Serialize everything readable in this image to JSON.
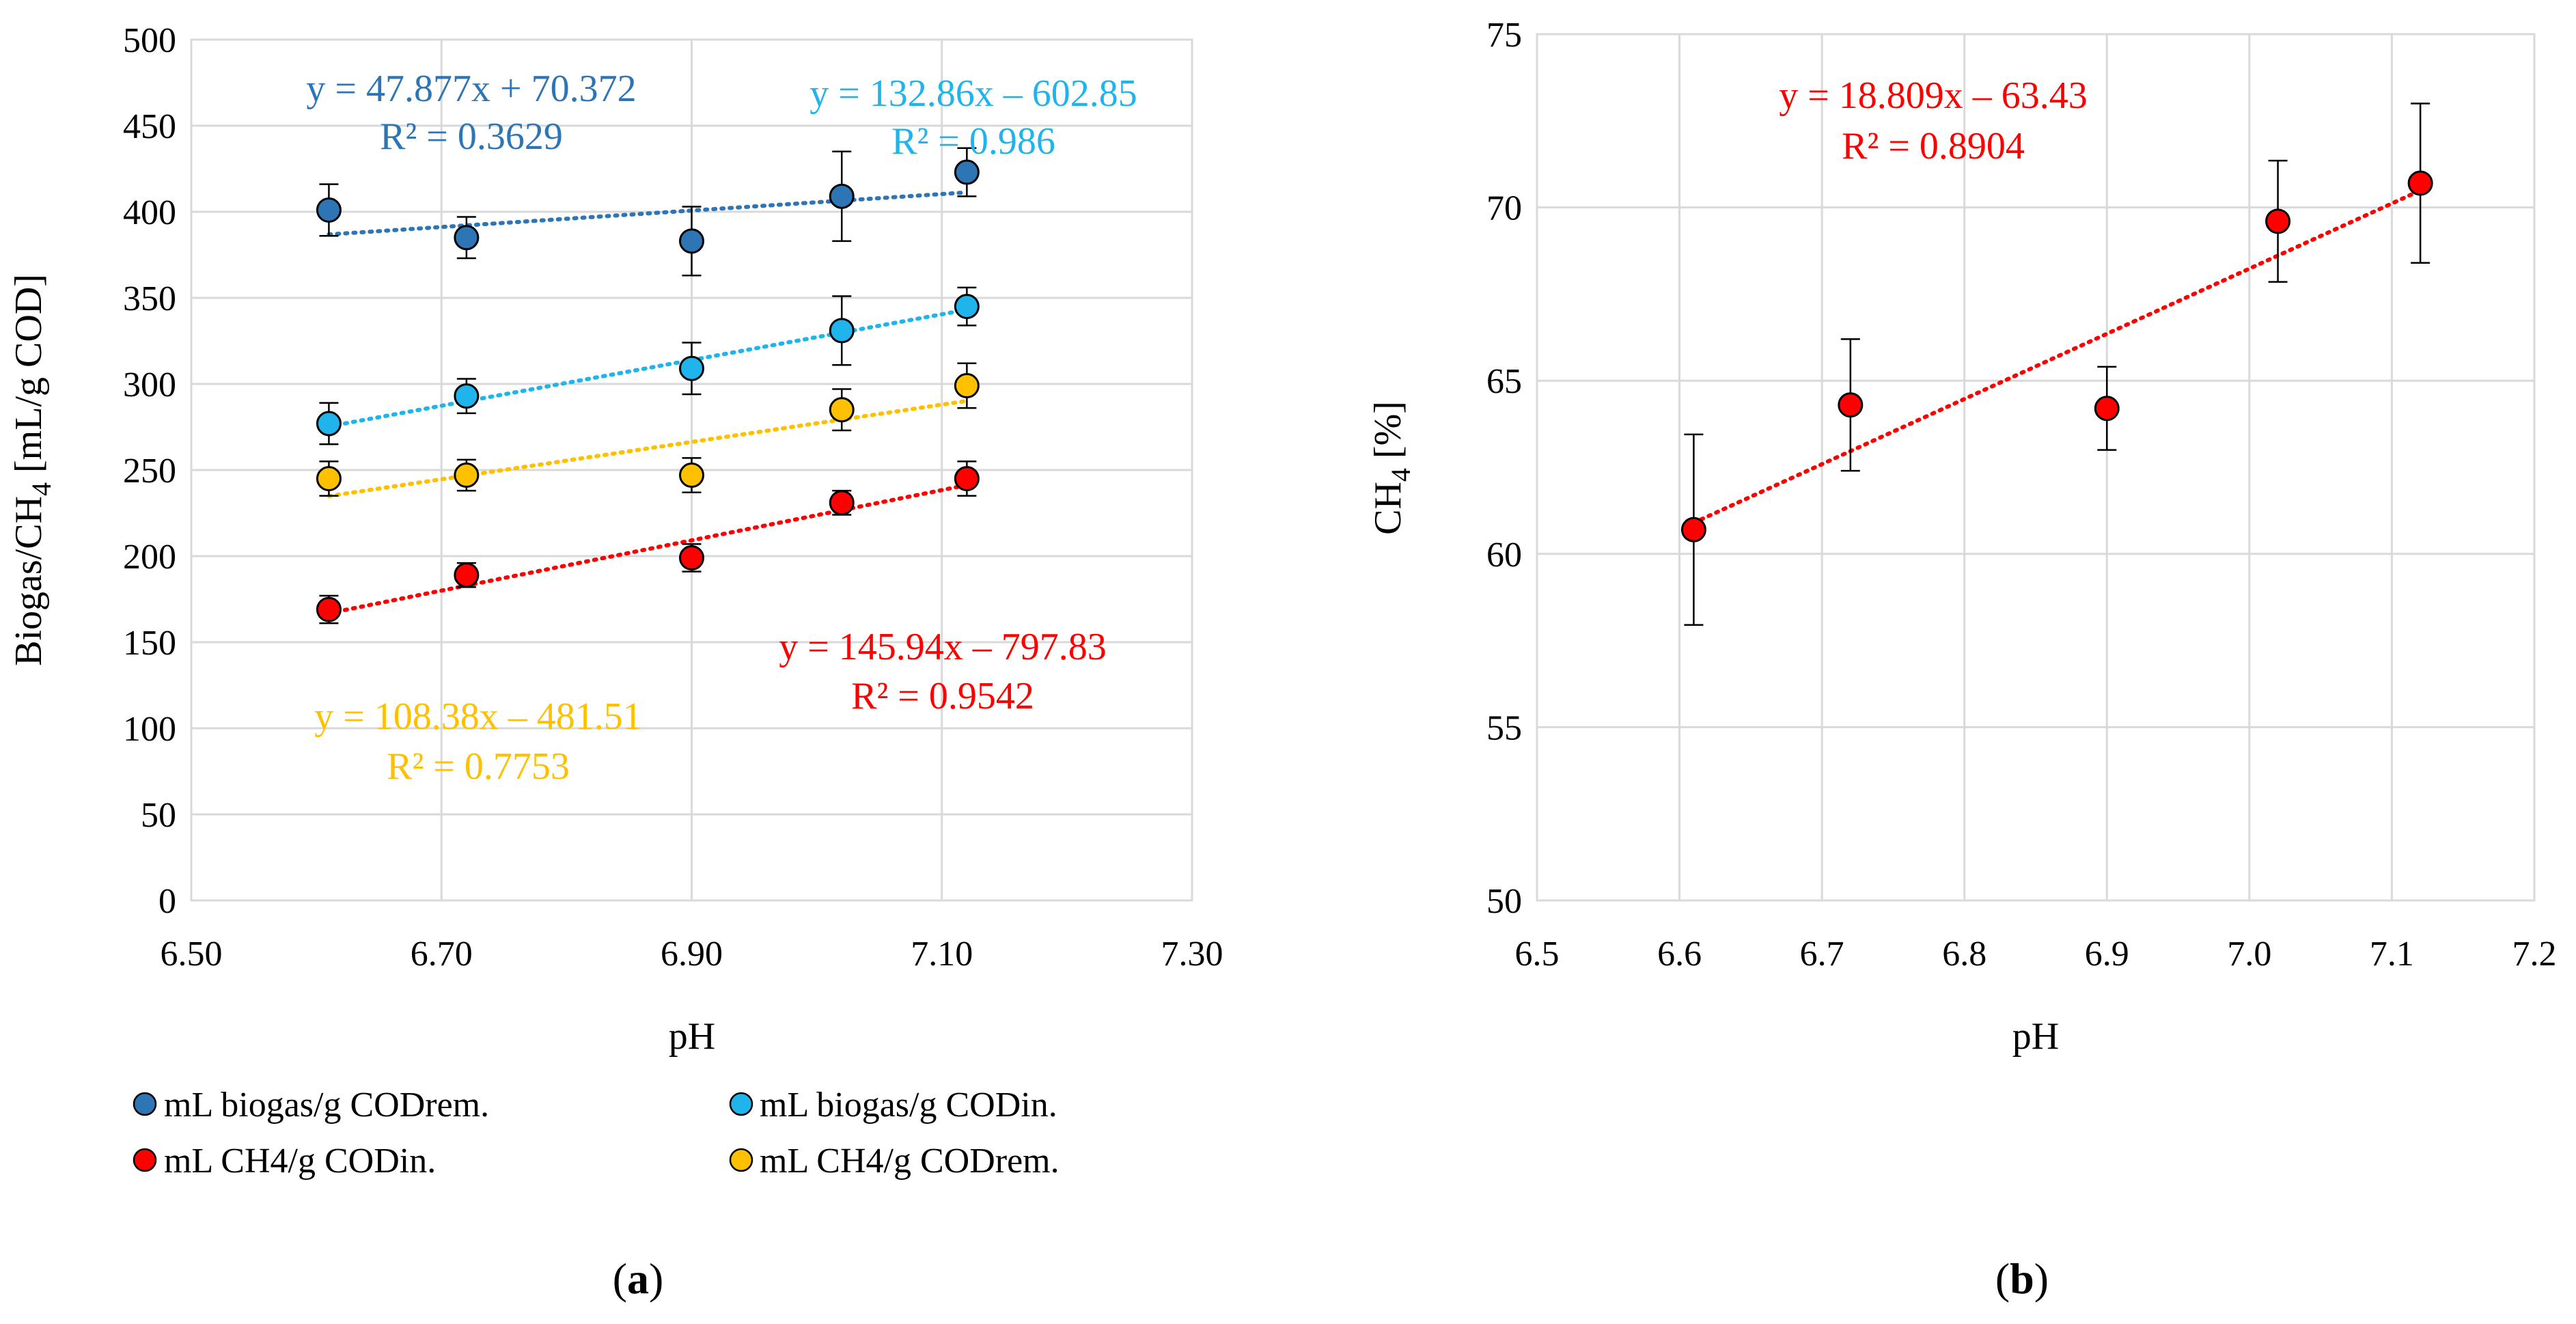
{
  "charts": [
    {
      "id": "a",
      "caption": "a",
      "xlabel": "pH",
      "ylabel": "Biogas/CH4 [mL/g COD]",
      "ylabel_parts": [
        "Biogas/CH",
        "4",
        " [mL/g COD]"
      ],
      "x_ticks": [
        "6.50",
        "6.70",
        "6.90",
        "7.10",
        "7.30"
      ],
      "y_ticks": [
        "0",
        "50",
        "100",
        "150",
        "200",
        "250",
        "300",
        "350",
        "400",
        "450",
        "500"
      ]
    },
    {
      "id": "b",
      "caption": "b",
      "xlabel": "pH",
      "ylabel": "CH4 [%]",
      "ylabel_parts": [
        "CH",
        "4",
        " [%]"
      ],
      "x_ticks": [
        "6.5",
        "6.6",
        "6.7",
        "6.8",
        "6.9",
        "7.0",
        "7.1",
        "7.2"
      ],
      "y_ticks": [
        "50",
        "55",
        "60",
        "65",
        "70",
        "75"
      ]
    }
  ],
  "legend": [
    "mL biogas/g CODrem.",
    "mL biogas/g CODin.",
    "mL CH4/g CODin.",
    "mL CH4/g CODrem."
  ],
  "chart_data": [
    {
      "type": "scatter",
      "title": "",
      "xlabel": "pH",
      "ylabel": "Biogas/CH4 [mL/g COD]",
      "xlim": [
        6.5,
        7.3
      ],
      "ylim": [
        0,
        500
      ],
      "grid": true,
      "legend_position": "bottom",
      "series": [
        {
          "name": "mL biogas/g CODrem.",
          "color": "#2e75b6",
          "x": [
            6.61,
            6.72,
            6.9,
            7.02,
            7.12
          ],
          "y": [
            401,
            385,
            383,
            409,
            423
          ],
          "error": [
            15,
            12,
            20,
            26,
            14
          ],
          "trendline": {
            "slope": 47.877,
            "intercept": 70.372,
            "equation": "y = 47.877x + 70.372",
            "r2": "R² = 0.3629"
          }
        },
        {
          "name": "mL biogas/g CODin.",
          "color": "#1fb4ec",
          "x": [
            6.61,
            6.72,
            6.9,
            7.02,
            7.12
          ],
          "y": [
            277,
            293,
            309,
            331,
            345
          ],
          "error": [
            12,
            10,
            15,
            20,
            11
          ],
          "trendline": {
            "slope": 132.86,
            "intercept": -602.85,
            "equation": "y = 132.86x – 602.85",
            "r2": "R² = 0.986"
          }
        },
        {
          "name": "mL CH4/g CODin.",
          "color": "#ff0000",
          "x": [
            6.61,
            6.72,
            6.9,
            7.02,
            7.12
          ],
          "y": [
            169,
            189,
            199,
            231,
            245
          ],
          "error": [
            8,
            7,
            8,
            7,
            10
          ],
          "trendline": {
            "slope": 145.94,
            "intercept": -797.83,
            "equation": "y = 145.94x – 797.83",
            "r2": "R² = 0.9542"
          }
        },
        {
          "name": "mL CH4/g CODrem.",
          "color": "#ffc000",
          "x": [
            6.61,
            6.72,
            6.9,
            7.02,
            7.12
          ],
          "y": [
            245,
            247,
            247,
            285,
            299
          ],
          "error": [
            10,
            9,
            10,
            12,
            13
          ],
          "trendline": {
            "slope": 108.38,
            "intercept": -481.51,
            "equation": "y = 108.38x – 481.51",
            "r2": "R² = 0.7753"
          }
        }
      ]
    },
    {
      "type": "scatter",
      "title": "",
      "xlabel": "pH",
      "ylabel": "CH4 [%]",
      "xlim": [
        6.5,
        7.2
      ],
      "ylim": [
        50,
        75
      ],
      "grid": true,
      "series": [
        {
          "name": "CH4 [%]",
          "color": "#ff0000",
          "x": [
            6.61,
            6.72,
            6.9,
            7.02,
            7.12
          ],
          "y": [
            60.7,
            64.3,
            64.2,
            69.6,
            70.7
          ],
          "error": [
            2.75,
            1.9,
            1.2,
            1.75,
            2.3
          ],
          "trendline": {
            "slope": 18.809,
            "intercept": -63.43,
            "equation": "y = 18.809x – 63.43",
            "r2": "R² = 0.8904"
          }
        }
      ]
    }
  ]
}
